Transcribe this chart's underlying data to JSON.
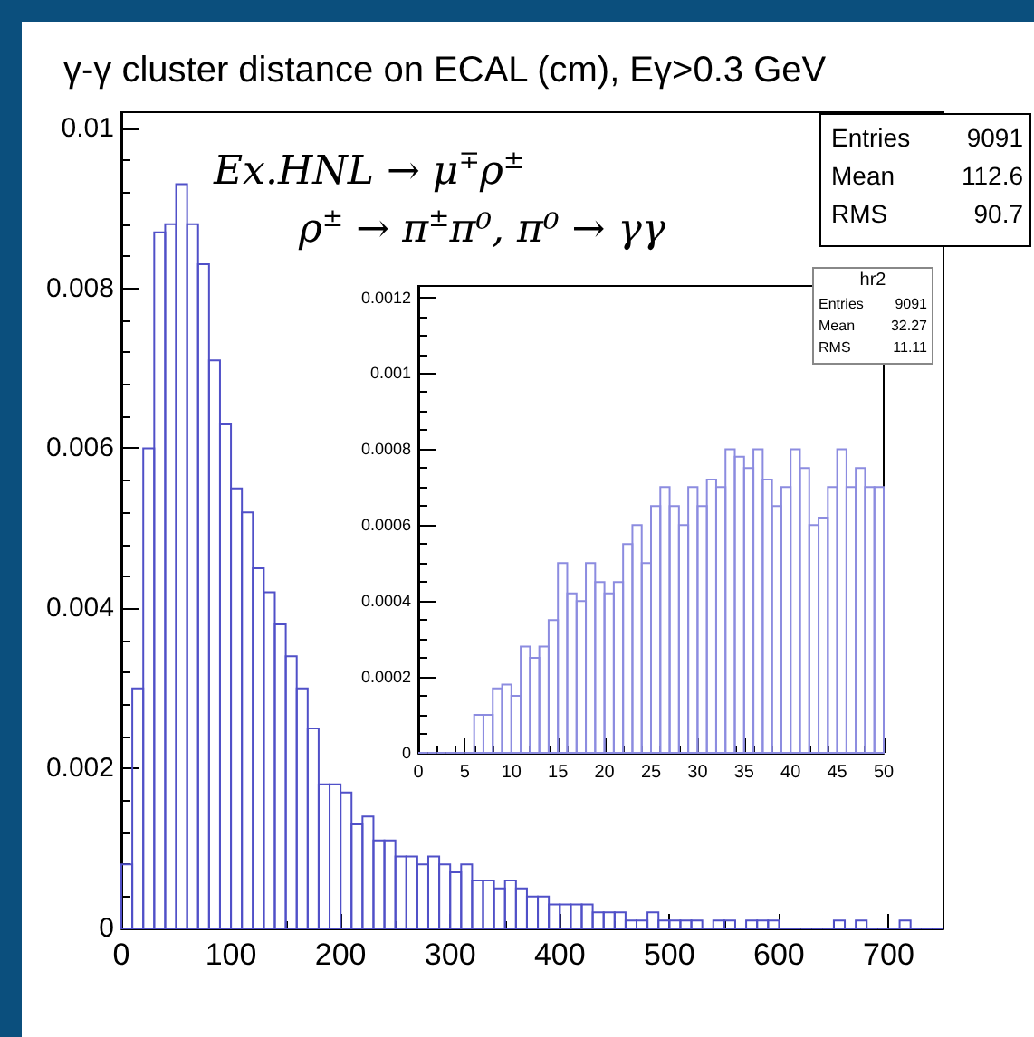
{
  "chart_data": [
    {
      "type": "histogram",
      "title": "γ-γ cluster distance on ECAL (cm), Eγ>0.3 GeV",
      "bins": [
        0,
        10,
        20,
        30,
        40,
        50,
        60,
        70,
        80,
        90,
        100,
        110,
        120,
        130,
        140,
        150,
        160,
        170,
        180,
        190,
        200,
        210,
        220,
        230,
        240,
        250,
        260,
        270,
        280,
        290,
        300,
        310,
        320,
        330,
        340,
        350,
        360,
        370,
        380,
        390,
        400,
        410,
        420,
        430,
        440,
        450,
        460,
        470,
        480,
        490,
        500,
        510,
        520,
        530,
        540,
        550,
        560,
        570,
        580,
        590,
        600,
        610,
        620,
        630,
        640,
        650,
        660,
        670,
        680,
        690,
        700,
        710,
        720,
        730,
        740,
        750
      ],
      "values": [
        0.0008,
        0.003,
        0.006,
        0.0087,
        0.0088,
        0.0093,
        0.0088,
        0.0083,
        0.0071,
        0.0063,
        0.0055,
        0.0052,
        0.0045,
        0.0042,
        0.0038,
        0.0034,
        0.003,
        0.0025,
        0.0018,
        0.0018,
        0.0017,
        0.0013,
        0.0014,
        0.0011,
        0.0011,
        0.0009,
        0.0009,
        0.0008,
        0.0009,
        0.0008,
        0.0007,
        0.0008,
        0.0006,
        0.0006,
        0.0005,
        0.0006,
        0.0005,
        0.0004,
        0.0004,
        0.0003,
        0.0003,
        0.0003,
        0.0003,
        0.0002,
        0.0002,
        0.0002,
        0.0001,
        0.0001,
        0.0002,
        0.0001,
        0.0001,
        0.0001,
        0.0001,
        0,
        0.0001,
        0.0001,
        0,
        0.0001,
        0.0001,
        0.0001,
        0,
        0,
        0,
        0,
        0,
        0.0001,
        0,
        0.0001,
        0,
        0,
        0,
        0.0001,
        0,
        0,
        0
      ],
      "color": "#5050c8",
      "xlim": [
        0,
        750
      ],
      "xticks": [
        0,
        100,
        200,
        300,
        400,
        500,
        600,
        700
      ],
      "ylim": [
        0,
        0.0102
      ],
      "yticks": [
        0,
        0.002,
        0.004,
        0.006,
        0.008,
        0.01
      ],
      "grid": false,
      "annotations": [
        "Ex.HNL → μ$^{∓}$ρ$^{±}$",
        "ρ$^{±}$ → π$^{±}$π⁰, π⁰ → γγ",
        "Entries 9091",
        "Mean 112.6",
        "RMS 90.7"
      ]
    },
    {
      "type": "histogram",
      "bins": [
        0,
        1,
        2,
        3,
        4,
        5,
        6,
        7,
        8,
        9,
        10,
        11,
        12,
        13,
        14,
        15,
        16,
        17,
        18,
        19,
        20,
        21,
        22,
        23,
        24,
        25,
        26,
        27,
        28,
        29,
        30,
        31,
        32,
        33,
        34,
        35,
        36,
        37,
        38,
        39,
        40,
        41,
        42,
        43,
        44,
        45,
        46,
        47,
        48,
        49,
        50
      ],
      "values": [
        0,
        0,
        0,
        0,
        0,
        0,
        0.0001,
        0.0001,
        0.00017,
        0.00018,
        0.00015,
        0.00028,
        0.00025,
        0.00028,
        0.00035,
        0.0005,
        0.00042,
        0.0004,
        0.0005,
        0.00045,
        0.00042,
        0.00045,
        0.00055,
        0.0006,
        0.0005,
        0.00065,
        0.0007,
        0.00065,
        0.0006,
        0.0007,
        0.00065,
        0.00072,
        0.0007,
        0.0008,
        0.00078,
        0.00075,
        0.0008,
        0.00072,
        0.00065,
        0.0007,
        0.0008,
        0.00075,
        0.0006,
        0.00062,
        0.0007,
        0.0008,
        0.0007,
        0.00075,
        0.0007,
        0.0007
      ],
      "color": "#8c8ce0",
      "xlim": [
        0,
        50
      ],
      "xticks": [
        0,
        5,
        10,
        15,
        20,
        25,
        30,
        35,
        40,
        45,
        50
      ],
      "ylim": [
        0,
        0.00123
      ],
      "yticks": [
        0,
        0.0002,
        0.0004,
        0.0006,
        0.0008,
        0.001,
        0.0012
      ],
      "grid": false,
      "annotations": [
        "hr2",
        "Entries 9091",
        "Mean 32.27",
        "RMS 11.11"
      ]
    }
  ]
}
